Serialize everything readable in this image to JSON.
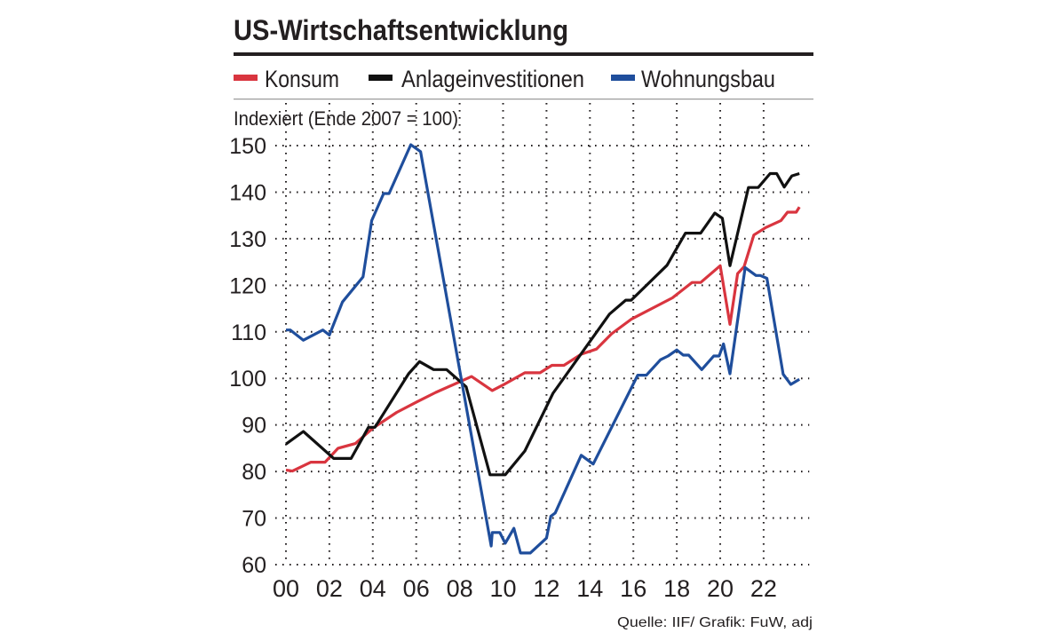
{
  "chart_data": {
    "type": "line",
    "title": "US-Wirtschaftsentwicklung",
    "ylabel": "Indexiert (Ende 2007 = 100)",
    "xlabel": "",
    "source": "Quelle: IIF/ Grafik: FuW, adj",
    "xlim": [
      2000,
      2024.1
    ],
    "ylim": [
      60,
      150
    ],
    "grid": true,
    "grid_style": "dotted",
    "legend_placement": "top",
    "x_ticks": [
      2000,
      2002,
      2004,
      2006,
      2008,
      2010,
      2012,
      2014,
      2016,
      2018,
      2020,
      2022
    ],
    "x_tick_labels": [
      "00",
      "02",
      "04",
      "06",
      "08",
      "10",
      "12",
      "14",
      "16",
      "18",
      "20",
      "22"
    ],
    "y_ticks": [
      60,
      70,
      80,
      90,
      100,
      110,
      120,
      130,
      140,
      150
    ],
    "y_tick_labels": [
      "60",
      "70",
      "80",
      "90",
      "100",
      "110",
      "120",
      "130",
      "140",
      "150"
    ],
    "series": [
      {
        "name": "Konsum",
        "color": "#d9353f",
        "points": [
          [
            2000,
            80.3
          ],
          [
            2000.3,
            80.1
          ],
          [
            2001.15,
            82
          ],
          [
            2001.8,
            82
          ],
          [
            2002.4,
            85
          ],
          [
            2003.2,
            86
          ],
          [
            2004,
            89.3
          ],
          [
            2005.1,
            92.7
          ],
          [
            2006.05,
            95
          ],
          [
            2006.9,
            97
          ],
          [
            2008.55,
            100.4
          ],
          [
            2009.5,
            97.4
          ],
          [
            2010,
            98.6
          ],
          [
            2011,
            101.2
          ],
          [
            2011.7,
            101.2
          ],
          [
            2012.25,
            102.8
          ],
          [
            2012.8,
            102.8
          ],
          [
            2013.6,
            105.2
          ],
          [
            2014.3,
            106.3
          ],
          [
            2015,
            109.6
          ],
          [
            2015.9,
            112.7
          ],
          [
            2017.8,
            117.3
          ],
          [
            2018.7,
            120.6
          ],
          [
            2019.1,
            120.6
          ],
          [
            2020,
            124.2
          ],
          [
            2020.45,
            111.6
          ],
          [
            2020.8,
            122.5
          ],
          [
            2021.1,
            124
          ],
          [
            2021.55,
            130.8
          ],
          [
            2022.1,
            132.4
          ],
          [
            2022.8,
            133.9
          ],
          [
            2023.1,
            135.7
          ],
          [
            2023.5,
            135.7
          ],
          [
            2023.65,
            136.8
          ]
        ]
      },
      {
        "name": "Anlageinvestitionen",
        "color": "#111111",
        "points": [
          [
            2000,
            85.9
          ],
          [
            2000.8,
            88.6
          ],
          [
            2002.2,
            82.8
          ],
          [
            2003,
            82.8
          ],
          [
            2003.8,
            89.5
          ],
          [
            2004.1,
            89.5
          ],
          [
            2005.65,
            101
          ],
          [
            2006.15,
            103.6
          ],
          [
            2006.8,
            101.9
          ],
          [
            2007.4,
            101.9
          ],
          [
            2008.3,
            98.2
          ],
          [
            2009.4,
            79.3
          ],
          [
            2010.1,
            79.3
          ],
          [
            2011,
            84.4
          ],
          [
            2012.3,
            96.8
          ],
          [
            2014.9,
            113.8
          ],
          [
            2015.65,
            116.8
          ],
          [
            2015.9,
            116.8
          ],
          [
            2017.55,
            124.3
          ],
          [
            2018.4,
            131.2
          ],
          [
            2019.1,
            131.2
          ],
          [
            2019.75,
            135.5
          ],
          [
            2020.1,
            134.4
          ],
          [
            2020.45,
            124.2
          ],
          [
            2021.3,
            141
          ],
          [
            2021.75,
            141
          ],
          [
            2022.3,
            144
          ],
          [
            2022.6,
            144
          ],
          [
            2022.95,
            141.1
          ],
          [
            2023.3,
            143.5
          ],
          [
            2023.65,
            144
          ]
        ]
      },
      {
        "name": "Wohnungsbau",
        "color": "#1f4e9c",
        "points": [
          [
            2000,
            110.4
          ],
          [
            2000.2,
            110.4
          ],
          [
            2000.8,
            108.2
          ],
          [
            2001.7,
            110.4
          ],
          [
            2002,
            109.3
          ],
          [
            2002.6,
            116.4
          ],
          [
            2003.55,
            121.8
          ],
          [
            2003.95,
            133.9
          ],
          [
            2004.5,
            139.7
          ],
          [
            2004.75,
            139.7
          ],
          [
            2005.75,
            150.2
          ],
          [
            2006.2,
            148.7
          ],
          [
            2009.45,
            64
          ],
          [
            2009.5,
            66.9
          ],
          [
            2009.85,
            66.9
          ],
          [
            2010.1,
            64.6
          ],
          [
            2010.5,
            67.8
          ],
          [
            2010.8,
            62.5
          ],
          [
            2011.25,
            62.5
          ],
          [
            2012,
            65.7
          ],
          [
            2012.2,
            70.4
          ],
          [
            2012.4,
            71.1
          ],
          [
            2013.6,
            83.5
          ],
          [
            2014.15,
            81.6
          ],
          [
            2016.2,
            100.7
          ],
          [
            2016.6,
            100.7
          ],
          [
            2017.25,
            104
          ],
          [
            2017.6,
            104.8
          ],
          [
            2018,
            106.1
          ],
          [
            2018.3,
            105
          ],
          [
            2018.55,
            105
          ],
          [
            2019.15,
            101.9
          ],
          [
            2019.7,
            104.8
          ],
          [
            2019.95,
            104.8
          ],
          [
            2020.15,
            107.4
          ],
          [
            2020.45,
            101
          ],
          [
            2021.15,
            123.8
          ],
          [
            2021.65,
            122.1
          ],
          [
            2021.85,
            122.1
          ],
          [
            2022.15,
            121.5
          ],
          [
            2022.9,
            100.9
          ],
          [
            2023.25,
            98.7
          ],
          [
            2023.65,
            99.8
          ]
        ]
      }
    ]
  }
}
